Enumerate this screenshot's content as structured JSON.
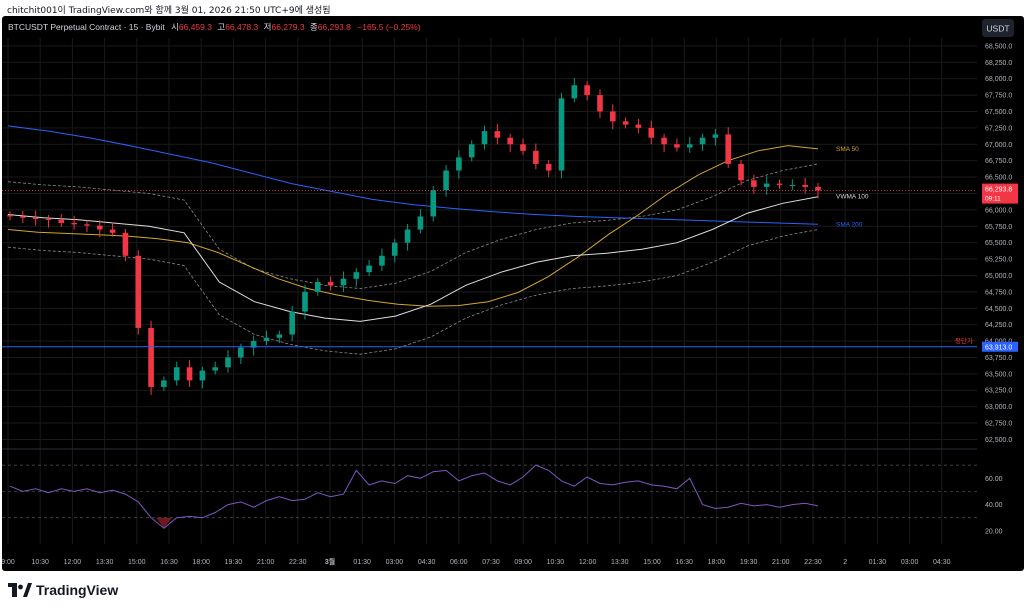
{
  "caption": "chitchit001이 TradingView.com와 함께 3월 01, 2026 21:50 UTC+9에 생성됨",
  "header": {
    "symbol": "BTCUSDT Perpetual Contract · 15 · Bybit",
    "open_label": "시",
    "open_value": "66,459.3",
    "high_label": "고",
    "high_value": "66,478.3",
    "low_label": "저",
    "low_value": "66,279.3",
    "close_label": "종",
    "close_value": "66,293.8",
    "change": "−165.5 (−0.25%)"
  },
  "currency_button": "USDT",
  "logo": "TradingView",
  "colors": {
    "up": "#089981",
    "down": "#f23645",
    "sma50": "#d4a72c",
    "sma200": "#2962ff",
    "vwma": "#e0e0e0",
    "bands": "#8a8a8a",
    "rsi": "#7e57c2",
    "grid": "#1a1a1a",
    "axis_text": "#b2b5be"
  },
  "chart_data": {
    "type": "line",
    "y_axis": {
      "ticks": [
        "68,500.0",
        "68,250.0",
        "68,000.0",
        "67,750.0",
        "67,500.0",
        "67,250.0",
        "67,000.0",
        "66,750.0",
        "66,500.0",
        "66,250.0",
        "66,000.0",
        "65,750.0",
        "65,500.0",
        "65,250.0",
        "65,000.0",
        "64,750.0",
        "64,500.0",
        "64,250.0",
        "64,000.0",
        "63,750.0",
        "63,500.0",
        "63,250.0",
        "63,000.0",
        "62,750.0",
        "62,500.0"
      ],
      "range": [
        62400,
        68620
      ]
    },
    "x_axis": {
      "ticks": [
        "9:00",
        "10:30",
        "12:00",
        "13:30",
        "15:00",
        "16:30",
        "18:00",
        "19:30",
        "21:00",
        "22:30",
        "3월",
        "01:30",
        "03:00",
        "04:30",
        "06:00",
        "07:30",
        "09:00",
        "10:30",
        "12:00",
        "13:30",
        "15:00",
        "16:30",
        "18:00",
        "19:30",
        "21:00",
        "22:30",
        "2",
        "01:30",
        "03:00",
        "04:30"
      ]
    },
    "price_label": {
      "value": "66,293.8",
      "countdown": "09:11"
    },
    "level_label": {
      "name": "평단가",
      "value": "63,913.0"
    },
    "indicators": [
      {
        "name": "SMA 50",
        "value_at_label": 66930
      },
      {
        "name": "VWMA 100",
        "value_at_label": 66200
      },
      {
        "name": "SMA 200",
        "value_at_label": 65780
      }
    ],
    "price_series": {
      "approx_close": [
        65900,
        65880,
        65860,
        65850,
        65800,
        65780,
        65760,
        65700,
        65650,
        65300,
        64200,
        63300,
        63400,
        63600,
        63400,
        63550,
        63600,
        63750,
        63900,
        64000,
        64050,
        64100,
        64450,
        64750,
        64900,
        64850,
        64950,
        65050,
        65150,
        65300,
        65500,
        65700,
        65900,
        66300,
        66600,
        66800,
        67000,
        67200,
        67100,
        67000,
        66900,
        66700,
        66600,
        67700,
        67900,
        67750,
        67500,
        67350,
        67300,
        67250,
        67100,
        67000,
        66950,
        67000,
        67100,
        67150,
        66700,
        66450,
        66350,
        66400,
        66380,
        66380,
        66350,
        66293.8
      ]
    },
    "sma50": {
      "approx": [
        65700,
        65660,
        65640,
        65620,
        65600,
        65560,
        65500,
        65350,
        65150,
        64950,
        64800,
        64700,
        64620,
        64560,
        64530,
        64540,
        64600,
        64740,
        64980,
        65280,
        65620,
        65920,
        66250,
        66530,
        66750,
        66900,
        66980,
        66930
      ]
    },
    "sma200": {
      "approx": [
        67280,
        67200,
        67100,
        66980,
        66850,
        66720,
        66560,
        66400,
        66280,
        66160,
        66080,
        66020,
        65970,
        65930,
        65900,
        65880,
        65860,
        65840,
        65820,
        65800,
        65780
      ]
    },
    "vwma100": {
      "approx": [
        65930,
        65880,
        65850,
        65800,
        65750,
        65650,
        64900,
        64600,
        64450,
        64350,
        64300,
        64380,
        64560,
        64850,
        65050,
        65200,
        65300,
        65340,
        65400,
        65500,
        65700,
        65950,
        66100,
        66200
      ]
    },
    "rsi": {
      "ticks": [
        "60.00",
        "40.00",
        "20.00"
      ],
      "levels": [
        70,
        50,
        30
      ],
      "range": [
        10,
        80
      ],
      "approx": [
        54,
        50,
        52,
        49,
        52,
        50,
        52,
        49,
        51,
        48,
        42,
        30,
        22,
        30,
        31,
        30,
        34,
        40,
        42,
        38,
        43,
        46,
        43,
        44,
        49,
        46,
        48,
        66,
        55,
        58,
        56,
        62,
        60,
        65,
        66,
        58,
        62,
        64,
        58,
        55,
        61,
        70,
        66,
        58,
        54,
        61,
        56,
        55,
        57,
        58,
        55,
        54,
        52,
        60,
        40,
        37,
        38,
        41,
        39,
        40,
        38,
        40,
        41,
        39
      ]
    }
  }
}
